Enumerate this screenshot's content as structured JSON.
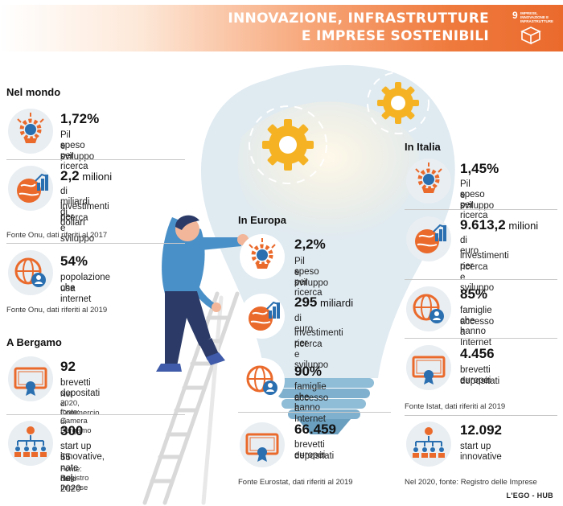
{
  "header": {
    "title_line1": "INNOVAZIONE, INFRASTRUTTURE",
    "title_line2": "E IMPRESE SOSTENIBILI",
    "sdg_number": "9",
    "sdg_text": "IMPRESE, INNOVAZIONE E INFRASTRUTTURE",
    "accent": "#ea6a2c"
  },
  "sections": {
    "world": "Nel mondo",
    "bergamo": "A Bergamo",
    "europe": "In Europa",
    "italy": "In Italia"
  },
  "world": {
    "s1": {
      "value": "1,72%",
      "desc1": "Pil speso per ricerca",
      "desc2": "e sviluppo",
      "icon": "gear-bulb-icon"
    },
    "s2": {
      "value": "2,2",
      "unit": " milioni",
      "desc1": "di miliardi di dollari",
      "desc2": "investimenti per",
      "desc3": "ricerca e sviluppo",
      "icon": "globe-chart-icon"
    },
    "source1": "Fonte Onu, dati riferiti al 2017",
    "s3": {
      "value": "54%",
      "desc1": "popolazione che",
      "desc2": "usa internet",
      "icon": "globe-user-icon"
    },
    "source2": "Fonte Onu, dati riferiti al 2019"
  },
  "bergamo": {
    "s1": {
      "value": "92",
      "desc1": "brevetti depositati",
      "note1": "Nel 2020, fonte: Camera",
      "note2": "di Commercio di Bergamo",
      "icon": "certificate-icon"
    },
    "s2": {
      "value": "300",
      "desc1": "start up innovative,",
      "desc2": "55 nate nel 2020",
      "note1": "Fonte: Registro",
      "note2": "delle Imprese",
      "icon": "org-chart-icon"
    }
  },
  "europe": {
    "s1": {
      "value": "2,2%",
      "desc1": "Pil speso per ricerca",
      "desc2": "e sviluppo",
      "icon": "gear-bulb-icon"
    },
    "s2": {
      "value": "295",
      "unit": " miliardi",
      "desc1": "di euro",
      "desc2": "investimenti per",
      "desc3": "ricerca e sviluppo",
      "icon": "globe-chart-icon"
    },
    "s3": {
      "value": "90%",
      "desc1": "famiglie che hanno",
      "desc2": "accesso a Internet",
      "icon": "globe-user-icon"
    },
    "s4": {
      "value": "66.459",
      "desc1": "brevetti europei",
      "desc2": "depositati",
      "icon": "certificate-icon"
    },
    "source": "Fonte Eurostat, dati riferiti al 2019"
  },
  "italy": {
    "s1": {
      "value": "1,45%",
      "desc1": "Pil speso per ricerca",
      "desc2": "e sviluppo",
      "icon": "gear-bulb-icon"
    },
    "s2": {
      "value": "9.613,2",
      "unit": " milioni",
      "desc1": "di euro",
      "desc2": "investimenti per",
      "desc3": "ricerca e sviluppo",
      "icon": "globe-chart-icon"
    },
    "s3": {
      "value": "85%",
      "desc1": "famiglie che hanno",
      "desc2": "accesso a Internet",
      "icon": "globe-user-icon"
    },
    "s4": {
      "value": "4.456",
      "desc1": "brevetti europei",
      "desc2": "depositati",
      "icon": "certificate-icon"
    },
    "source1": "Fonte Istat, dati riferiti al 2019",
    "s5": {
      "value": "12.092",
      "desc1": "start up innovative",
      "icon": "org-chart-icon"
    },
    "source2": "Nel 2020, fonte: Registro delle Imprese"
  },
  "credit": "L'EGO - HUB"
}
